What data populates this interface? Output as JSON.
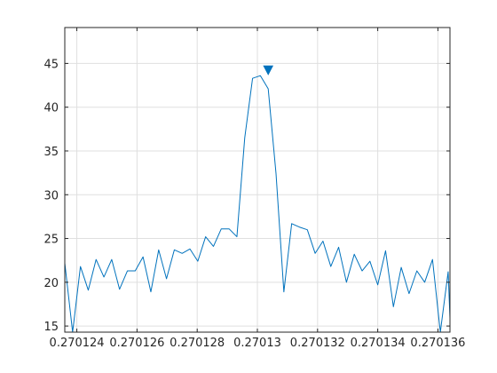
{
  "chart_data": {
    "type": "line",
    "title": "",
    "xlabel": "",
    "ylabel": "",
    "xlim": [
      0.2701236,
      0.2701364
    ],
    "ylim": [
      14.3,
      49.1
    ],
    "grid": true,
    "box": true,
    "line_color": "#0072BD",
    "xticks": [
      0.270124,
      0.270126,
      0.270128,
      0.27013,
      0.270132,
      0.270134,
      0.270136
    ],
    "xtick_labels": [
      "0.270124",
      "0.270126",
      "0.270128",
      "0.27013",
      "0.270132",
      "0.270134",
      "0.270136"
    ],
    "yticks": [
      15,
      20,
      25,
      30,
      35,
      40,
      45
    ],
    "ytick_labels": [
      "15",
      "20",
      "25",
      "30",
      "35",
      "40",
      "45"
    ],
    "series": [
      {
        "x": [
          0.2701236,
          0.27012386,
          0.27012412,
          0.27012438,
          0.27012464,
          0.2701249,
          0.27012516,
          0.27012542,
          0.27012568,
          0.27012594,
          0.2701262,
          0.27012646,
          0.27012672,
          0.27012698,
          0.27012724,
          0.2701275,
          0.27012776,
          0.27012802,
          0.27012828,
          0.27012854,
          0.2701288,
          0.27012906,
          0.27012932,
          0.27012958,
          0.27012984,
          0.2701301,
          0.27013036,
          0.27013062,
          0.27013088,
          0.27013114,
          0.2701314,
          0.27013166,
          0.27013192,
          0.27013218,
          0.27013244,
          0.2701327,
          0.27013296,
          0.27013322,
          0.27013348,
          0.27013374,
          0.270134,
          0.27013426,
          0.27013452,
          0.27013478,
          0.27013504,
          0.2701353,
          0.27013556,
          0.27013582,
          0.27013608,
          0.27013634,
          0.2701364
        ],
        "y": [
          22.2,
          14.3,
          21.8,
          19.1,
          22.6,
          20.6,
          22.6,
          19.2,
          21.3,
          21.3,
          22.9,
          18.9,
          23.7,
          20.4,
          23.7,
          23.3,
          23.8,
          22.4,
          25.2,
          24.1,
          26.1,
          26.1,
          25.2,
          36.5,
          43.3,
          43.6,
          42.1,
          32.4,
          18.9,
          26.7,
          26.3,
          26.0,
          23.3,
          24.7,
          21.8,
          24.0,
          20.0,
          23.2,
          21.3,
          22.4,
          19.7,
          23.6,
          17.2,
          21.7,
          18.7,
          21.3,
          20.0,
          22.6,
          14.3,
          21.2,
          15.9
        ]
      }
    ],
    "peak_marker": {
      "x": 0.27013036,
      "y": 44.2,
      "shape": "down-triangle"
    }
  }
}
